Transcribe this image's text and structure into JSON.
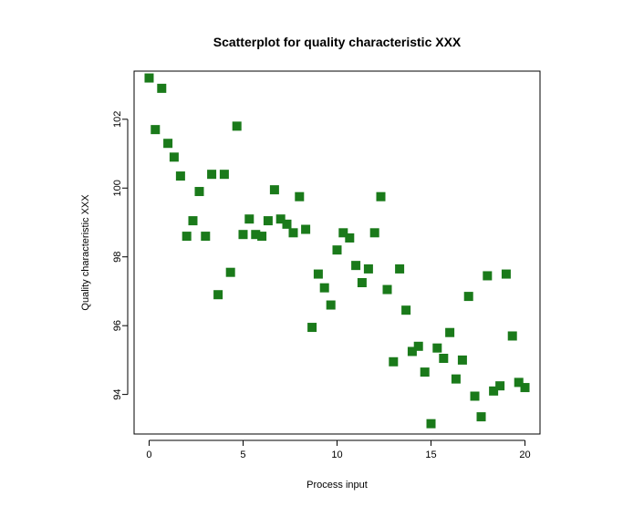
{
  "chart_data": {
    "type": "scatter",
    "title": "Scatterplot for quality characteristic XXX",
    "xlabel": "Process input",
    "ylabel": "Quality characteristic XXX",
    "xlim": [
      -0.8,
      20.8
    ],
    "ylim": [
      92.85,
      103.4
    ],
    "xticks": [
      0,
      5,
      10,
      15,
      20
    ],
    "yticks": [
      94,
      96,
      98,
      100,
      102
    ],
    "grid": false,
    "legend": "none",
    "marker": "square",
    "color": "#1a7a1a",
    "series": [
      {
        "x": [
          0,
          0.33,
          0.67,
          1,
          1.33,
          1.67,
          2,
          2.33,
          2.67,
          3,
          3.33,
          3.67,
          4,
          4.33,
          4.67,
          5,
          5.33,
          5.67,
          6,
          6.33,
          6.67,
          7,
          7.33,
          7.67,
          8,
          8.33,
          8.67,
          9,
          9.33,
          9.67,
          10,
          10.33,
          10.67,
          11,
          11.33,
          11.67,
          12,
          12.33,
          12.67,
          13,
          13.33,
          13.67,
          14,
          14.33,
          14.67,
          15,
          15.33,
          15.67,
          16,
          16.33,
          16.67,
          17,
          17.33,
          17.67,
          18,
          18.33,
          18.67,
          19,
          19.33,
          19.67,
          20
        ],
        "y": [
          103.2,
          101.7,
          102.9,
          101.3,
          100.9,
          100.35,
          98.6,
          99.05,
          99.9,
          98.6,
          100.4,
          96.9,
          100.4,
          97.55,
          101.8,
          98.65,
          99.1,
          98.65,
          98.6,
          99.05,
          99.95,
          99.1,
          98.95,
          98.7,
          99.75,
          98.8,
          95.95,
          97.5,
          97.1,
          96.6,
          98.2,
          98.7,
          98.55,
          97.75,
          97.25,
          97.65,
          98.7,
          99.75,
          97.05,
          94.95,
          97.65,
          96.45,
          95.25,
          95.4,
          94.65,
          93.15,
          95.35,
          95.05,
          95.8,
          94.45,
          95.0,
          96.85,
          93.95,
          93.35,
          97.45,
          94.1,
          94.25,
          97.5,
          95.7,
          94.35,
          94.2
        ]
      }
    ]
  }
}
